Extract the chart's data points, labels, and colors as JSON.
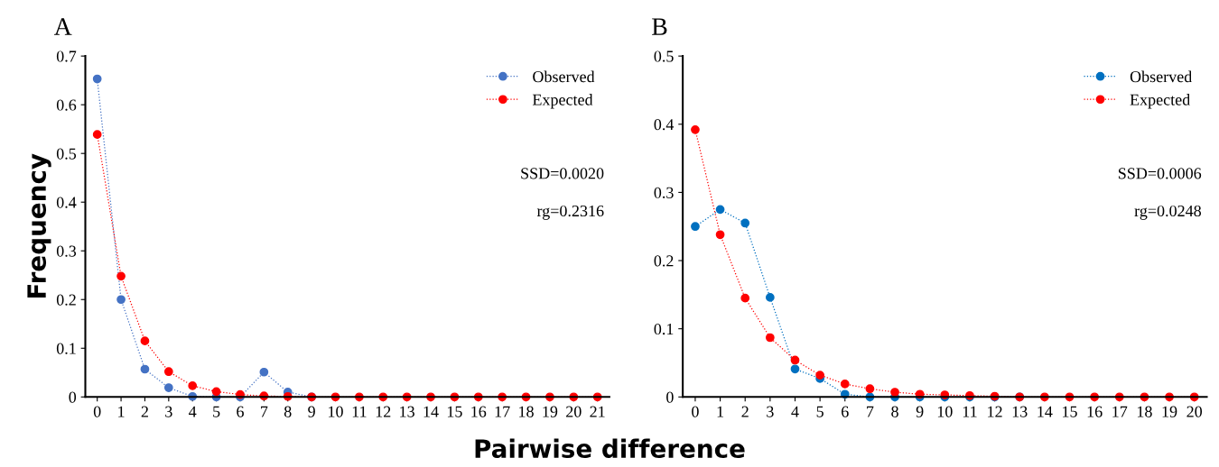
{
  "chart_data": [
    {
      "type": "line",
      "title": "A",
      "ylabel": "Frequency",
      "xlabel": "Pairwise difference",
      "categories": [
        "0",
        "1",
        "2",
        "3",
        "4",
        "5",
        "6",
        "7",
        "8",
        "9",
        "10",
        "11",
        "12",
        "13",
        "14",
        "15",
        "16",
        "17",
        "18",
        "19",
        "20",
        "21"
      ],
      "series": [
        {
          "name": "Observed",
          "color": "#4472c4",
          "values": [
            0.653,
            0.2,
            0.057,
            0.019,
            0.001,
            0,
            0,
            0.051,
            0.01,
            0,
            null,
            null,
            null,
            null,
            null,
            null,
            null,
            null,
            null,
            null,
            null,
            null
          ]
        },
        {
          "name": "Expected",
          "color": "#ff0000",
          "values": [
            0.539,
            0.248,
            0.115,
            0.052,
            0.023,
            0.011,
            0.005,
            0.002,
            0.001,
            0,
            0,
            0,
            0,
            0,
            0,
            0,
            0,
            0,
            0,
            0,
            0,
            0
          ]
        }
      ],
      "ylim": [
        0,
        0.7
      ],
      "yticks": [
        {
          "value": 0,
          "label": "0"
        },
        0.1,
        0.2,
        0.3,
        0.4,
        0.5,
        0.6,
        0.7
      ],
      "annotations": [
        "SSD=0.0020",
        "rg=0.2316"
      ],
      "legend": "top right",
      "marker": "circle",
      "line_style": "dotted",
      "grid": false
    },
    {
      "type": "line",
      "title": "B",
      "categories": [
        "0",
        "1",
        "2",
        "3",
        "4",
        "5",
        "6",
        "7",
        "8",
        "9",
        "10",
        "11",
        "12",
        "13",
        "14",
        "15",
        "16",
        "17",
        "18",
        "19",
        "20"
      ],
      "series": [
        {
          "name": "Observed",
          "color": "#0070c0",
          "values": [
            0.25,
            0.275,
            0.255,
            0.146,
            0.041,
            0.027,
            0.004,
            0,
            0,
            0,
            0,
            0,
            0,
            0,
            null,
            null,
            null,
            null,
            null,
            null,
            null
          ]
        },
        {
          "name": "Expected",
          "color": "#ff0000",
          "values": [
            0.392,
            0.238,
            0.145,
            0.087,
            0.054,
            0.032,
            0.019,
            0.012,
            0.007,
            0.004,
            0.003,
            0.002,
            0.001,
            0,
            0,
            0,
            0,
            0,
            0,
            0,
            0
          ]
        }
      ],
      "ylim": [
        0,
        0.5
      ],
      "yticks": [
        {
          "value": 0,
          "label": "0"
        },
        0.1,
        0.2,
        0.3,
        0.4,
        0.5
      ],
      "annotations": [
        "SSD=0.0006",
        "rg=0.0248"
      ],
      "legend": "top right",
      "marker": "circle",
      "line_style": "dotted",
      "grid": false
    }
  ]
}
